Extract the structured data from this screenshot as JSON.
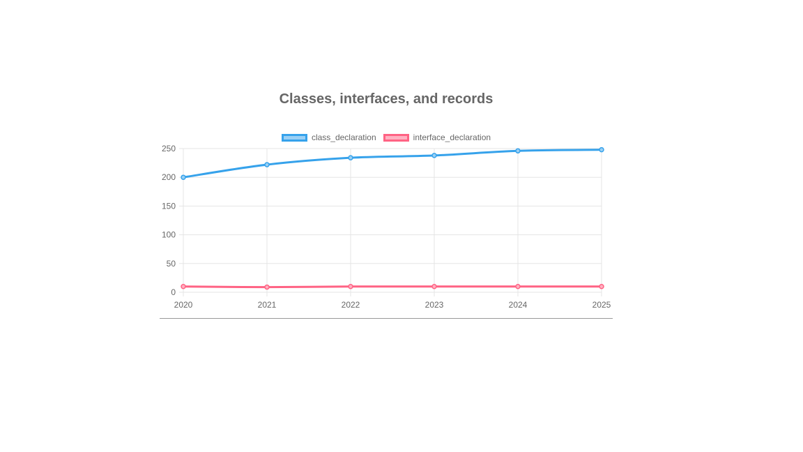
{
  "chart_data": {
    "type": "line",
    "title": "Classes, interfaces, and records",
    "xlabel": "",
    "ylabel": "",
    "x": [
      "2020",
      "2021",
      "2022",
      "2023",
      "2024",
      "2025"
    ],
    "ylim": [
      0,
      250
    ],
    "yticks": [
      "0",
      "50",
      "100",
      "150",
      "200",
      "250"
    ],
    "grid": true,
    "legend_position": "top",
    "series": [
      {
        "name": "class_declaration",
        "values": [
          200,
          222,
          234,
          238,
          246,
          248
        ],
        "color": "#36a2eb",
        "fill": "#9ad0f5"
      },
      {
        "name": "interface_declaration",
        "values": [
          10,
          9,
          10,
          10,
          10,
          10
        ],
        "color": "#ff6384",
        "fill": "#ffb1c1"
      }
    ]
  }
}
